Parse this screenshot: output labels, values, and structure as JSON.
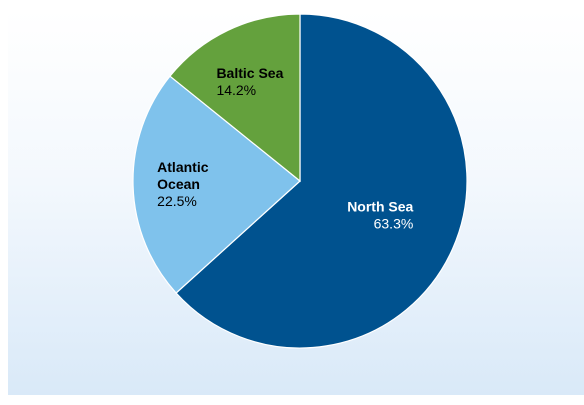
{
  "chart_data": {
    "type": "pie",
    "title": "",
    "slices": [
      {
        "label": [
          "North Sea"
        ],
        "value": 63.3,
        "value_label": "63.3%",
        "color": "#00528f",
        "text_color": "#ffffff"
      },
      {
        "label": [
          "Atlantic",
          "Ocean"
        ],
        "value": 22.5,
        "value_label": "22.5%",
        "color": "#7fc2ec",
        "text_color": "#000000"
      },
      {
        "label": [
          "Baltic Sea"
        ],
        "value": 14.2,
        "value_label": "14.2%",
        "color": "#64a13d",
        "text_color": "#000000"
      }
    ],
    "start_angle_deg": 0,
    "direction": "clockwise",
    "background_colors": [
      "#ffffff",
      "#d9e9f8"
    ]
  }
}
